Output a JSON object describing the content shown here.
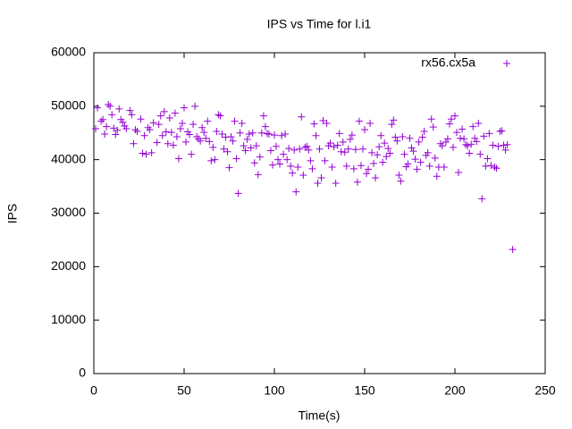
{
  "chart_data": {
    "type": "scatter",
    "title": "IPS vs Time for l.i1",
    "x_label": "Time(s)",
    "y_label": "IPS",
    "xlim": [
      0,
      250
    ],
    "xticks": [
      0,
      50,
      100,
      150,
      200,
      250
    ],
    "ylim": [
      0,
      60000
    ],
    "yticks": [
      0,
      10000,
      20000,
      30000,
      40000,
      50000,
      60000
    ],
    "legend": "top-right",
    "series": [
      {
        "name": "rx56.cx5a",
        "color": "#9400d3",
        "x": [
          1,
          2,
          4,
          5,
          6,
          7,
          8,
          9,
          10,
          11,
          12,
          13,
          14,
          15,
          16,
          17,
          18,
          20,
          21,
          22,
          23,
          24,
          26,
          27,
          28,
          29,
          30,
          31,
          32,
          33,
          35,
          36,
          37,
          38,
          39,
          40,
          41,
          42,
          43,
          44,
          45,
          46,
          47,
          48,
          49,
          50,
          51,
          52,
          53,
          54,
          55,
          56,
          57,
          58,
          59,
          60,
          61,
          62,
          63,
          64,
          65,
          66,
          67,
          68,
          69,
          70,
          71,
          72,
          73,
          74,
          75,
          76,
          77,
          78,
          79,
          80,
          81,
          82,
          83,
          84,
          85,
          86,
          87,
          88,
          89,
          90,
          91,
          92,
          93,
          94,
          95,
          96,
          97,
          98,
          99,
          100,
          101,
          102,
          103,
          104,
          105,
          106,
          107,
          108,
          109,
          110,
          111,
          112,
          113,
          114,
          115,
          116,
          117,
          118,
          119,
          120,
          121,
          122,
          123,
          124,
          125,
          126,
          127,
          128,
          129,
          130,
          131,
          132,
          133,
          134,
          135,
          136,
          137,
          138,
          139,
          140,
          141,
          142,
          143,
          144,
          145,
          146,
          147,
          148,
          149,
          150,
          151,
          152,
          153,
          154,
          155,
          156,
          157,
          158,
          159,
          160,
          161,
          162,
          163,
          164,
          165,
          166,
          167,
          168,
          169,
          170,
          171,
          172,
          173,
          174,
          175,
          176,
          177,
          178,
          179,
          180,
          181,
          182,
          183,
          184,
          185,
          186,
          187,
          188,
          189,
          190,
          191,
          192,
          193,
          194,
          195,
          196,
          197,
          198,
          199,
          200,
          201,
          202,
          203,
          204,
          205,
          206,
          207,
          208,
          209,
          210,
          211,
          212,
          213,
          214,
          215,
          216,
          217,
          218,
          219,
          220,
          221,
          222,
          223,
          224,
          225,
          226,
          227,
          228,
          229,
          232
        ],
        "values": [
          45800,
          49700,
          47200,
          47500,
          44800,
          46200,
          50300,
          50000,
          48400,
          45900,
          44700,
          45500,
          49500,
          47500,
          47000,
          46300,
          45800,
          49200,
          48400,
          43000,
          45600,
          45300,
          47600,
          41200,
          44500,
          41000,
          46000,
          45600,
          41300,
          46900,
          43200,
          46600,
          48200,
          44500,
          49000,
          45200,
          43000,
          47800,
          45100,
          42700,
          48700,
          44300,
          40200,
          45800,
          46800,
          49700,
          43300,
          45200,
          44700,
          41000,
          46600,
          50000,
          44300,
          43900,
          43500,
          46000,
          45100,
          44000,
          47200,
          43400,
          39800,
          42300,
          40000,
          45300,
          48400,
          48200,
          44800,
          42000,
          44200,
          41500,
          38500,
          44300,
          43500,
          47200,
          40200,
          33700,
          45000,
          46800,
          42600,
          41700,
          43800,
          44800,
          42200,
          45000,
          39400,
          42600,
          37200,
          40500,
          45000,
          48200,
          46200,
          44900,
          44800,
          41700,
          39000,
          44600,
          42500,
          40000,
          39200,
          44500,
          41000,
          44800,
          40000,
          42100,
          38800,
          37500,
          41800,
          34000,
          38600,
          42000,
          48000,
          37100,
          42300,
          42500,
          41800,
          39800,
          38300,
          46700,
          44500,
          35600,
          42000,
          36600,
          47300,
          39800,
          46800,
          42600,
          43100,
          38600,
          42400,
          35600,
          42700,
          44900,
          41500,
          43300,
          41400,
          38800,
          42000,
          43800,
          44600,
          38300,
          41900,
          35800,
          47200,
          38900,
          42000,
          45600,
          37400,
          38200,
          46800,
          41300,
          39300,
          36600,
          40900,
          42400,
          44500,
          39500,
          43100,
          40600,
          42100,
          41200,
          46600,
          47400,
          44200,
          43500,
          37100,
          36000,
          44300,
          41000,
          38700,
          39200,
          44000,
          42200,
          41600,
          40100,
          38200,
          43300,
          39500,
          44200,
          45300,
          40800,
          41300,
          38800,
          47600,
          46100,
          40300,
          36900,
          38600,
          43000,
          42600,
          38600,
          43300,
          43900,
          46700,
          47600,
          42300,
          48200,
          45100,
          37600,
          44000,
          45700,
          43900,
          42800,
          42600,
          41200,
          42900,
          46200,
          44000,
          43400,
          46800,
          41000,
          32700,
          44400,
          38800,
          40200,
          44900,
          38900,
          42700,
          38600,
          38400,
          42500,
          45300,
          45400,
          42700,
          41800,
          42800,
          23200
        ]
      }
    ]
  }
}
